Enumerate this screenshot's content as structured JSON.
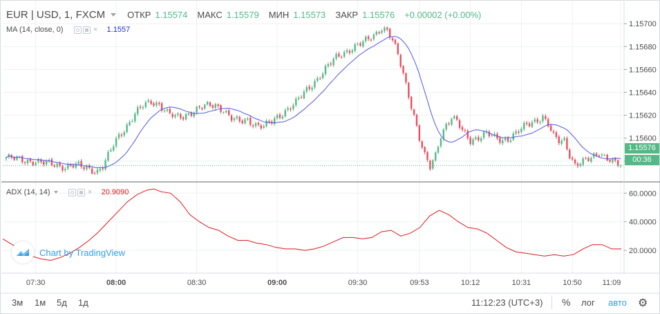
{
  "header": {
    "symbol": "EUR | USD, 1, FXCM",
    "open_label": "ОТКР",
    "open_value": "1.15574",
    "high_label": "МАКС",
    "high_value": "1.15579",
    "low_label": "МИН",
    "low_value": "1.15573",
    "close_label": "ЗАКР",
    "close_value": "1.15576",
    "change": "+0.00002 (+0.00%)"
  },
  "ma_indicator": {
    "label": "MA (14, close, 0)",
    "value": "1.1557",
    "color": "#1e2be3"
  },
  "adx_indicator": {
    "label": "ADX (14, 14)",
    "value": "20.9090",
    "color": "#e0161a"
  },
  "watermark": {
    "text": "Chart by TradingView"
  },
  "price_labels": {
    "last_price": "1.15576",
    "countdown": "00:36"
  },
  "bottom_bar": {
    "ranges": [
      "3м",
      "1м",
      "5д",
      "1д"
    ],
    "clock": "11:12:23 (UTC+3)",
    "percent_label": "%",
    "log_label": "лог",
    "auto_label": "авто"
  },
  "colors": {
    "up": "#53b987",
    "down": "#eb4d5c",
    "ma": "#4f56e8",
    "adx": "#e0161a",
    "accent": "#2f9ff0"
  },
  "chart_data": [
    {
      "type": "candlestick",
      "title": "EUR | USD, 1, FXCM",
      "x_time_range": [
        "07:19",
        "11:12"
      ],
      "x_ticks": [
        {
          "label": "07:30",
          "bold": false
        },
        {
          "label": "08:00",
          "bold": true
        },
        {
          "label": "08:30",
          "bold": false
        },
        {
          "label": "09:00",
          "bold": true
        },
        {
          "label": "09:30",
          "bold": false
        },
        {
          "label": "09:53",
          "bold": false
        },
        {
          "label": "10:12",
          "bold": false
        },
        {
          "label": "10:31",
          "bold": false
        },
        {
          "label": "10:50",
          "bold": false
        },
        {
          "label": "11:09",
          "bold": false
        }
      ],
      "y_ticks": [
        "1.15700",
        "1.15680",
        "1.15660",
        "1.15640",
        "1.15620",
        "1.15600",
        "1.15580"
      ],
      "ylim": [
        1.15575,
        1.15708
      ],
      "close_path": [
        [
          0,
          1.15583
        ],
        [
          5,
          1.15581
        ],
        [
          10,
          1.1558
        ],
        [
          14,
          1.15578
        ],
        [
          18,
          1.15577
        ],
        [
          22,
          1.15575
        ],
        [
          26,
          1.15576
        ],
        [
          30,
          1.15574
        ],
        [
          34,
          1.15571
        ],
        [
          36,
          1.15575
        ],
        [
          38,
          1.15584
        ],
        [
          40,
          1.15594
        ],
        [
          42,
          1.15602
        ],
        [
          45,
          1.15611
        ],
        [
          48,
          1.15621
        ],
        [
          51,
          1.15628
        ],
        [
          54,
          1.15632
        ],
        [
          57,
          1.1563
        ],
        [
          60,
          1.15622
        ],
        [
          63,
          1.15618
        ],
        [
          66,
          1.15619
        ],
        [
          69,
          1.15623
        ],
        [
          72,
          1.15626
        ],
        [
          75,
          1.15628
        ],
        [
          78,
          1.15629
        ],
        [
          81,
          1.15625
        ],
        [
          84,
          1.15617
        ],
        [
          87,
          1.15614
        ],
        [
          90,
          1.15616
        ],
        [
          93,
          1.15612
        ],
        [
          96,
          1.1561
        ],
        [
          99,
          1.15614
        ],
        [
          102,
          1.1562
        ],
        [
          105,
          1.15626
        ],
        [
          108,
          1.15631
        ],
        [
          111,
          1.15639
        ],
        [
          114,
          1.15647
        ],
        [
          117,
          1.15655
        ],
        [
          120,
          1.15663
        ],
        [
          123,
          1.1567
        ],
        [
          126,
          1.15675
        ],
        [
          129,
          1.15679
        ],
        [
          132,
          1.15682
        ],
        [
          135,
          1.15686
        ],
        [
          138,
          1.15692
        ],
        [
          140,
          1.15697
        ],
        [
          142,
          1.15694
        ],
        [
          144,
          1.15685
        ],
        [
          146,
          1.15672
        ],
        [
          148,
          1.15656
        ],
        [
          150,
          1.15638
        ],
        [
          152,
          1.1562
        ],
        [
          154,
          1.156
        ],
        [
          156,
          1.15584
        ],
        [
          158,
          1.15574
        ],
        [
          160,
          1.15585
        ],
        [
          162,
          1.15603
        ],
        [
          164,
          1.15612
        ],
        [
          166,
          1.15618
        ],
        [
          168,
          1.15614
        ],
        [
          170,
          1.15606
        ],
        [
          173,
          1.15598
        ],
        [
          176,
          1.15601
        ],
        [
          179,
          1.15604
        ],
        [
          182,
          1.156
        ],
        [
          185,
          1.15598
        ],
        [
          188,
          1.15601
        ],
        [
          191,
          1.15606
        ],
        [
          194,
          1.15611
        ],
        [
          197,
          1.15615
        ],
        [
          200,
          1.15619
        ],
        [
          202,
          1.15612
        ],
        [
          204,
          1.15601
        ],
        [
          206,
          1.15597
        ],
        [
          208,
          1.15598
        ],
        [
          210,
          1.15586
        ],
        [
          212,
          1.15577
        ],
        [
          215,
          1.15579
        ],
        [
          218,
          1.15582
        ],
        [
          221,
          1.15588
        ],
        [
          224,
          1.15583
        ],
        [
          227,
          1.15578
        ],
        [
          229,
          1.15576
        ]
      ],
      "ma_period": 14
    },
    {
      "type": "line",
      "title": "ADX (14, 14)",
      "y_ticks": [
        "60.0000",
        "40.0000",
        "20.0000"
      ],
      "ylim": [
        5,
        64
      ],
      "series": [
        {
          "name": "ADX (14, 14)",
          "points": [
            [
              0,
              28
            ],
            [
              4,
              24
            ],
            [
              8,
              20
            ],
            [
              12,
              16
            ],
            [
              16,
              14
            ],
            [
              20,
              13
            ],
            [
              24,
              15
            ],
            [
              28,
              18
            ],
            [
              32,
              22
            ],
            [
              36,
              27
            ],
            [
              40,
              33
            ],
            [
              44,
              40
            ],
            [
              48,
              47
            ],
            [
              52,
              54
            ],
            [
              56,
              59
            ],
            [
              60,
              62
            ],
            [
              63,
              63
            ],
            [
              66,
              61
            ],
            [
              70,
              60
            ],
            [
              74,
              54
            ],
            [
              78,
              45
            ],
            [
              82,
              40
            ],
            [
              86,
              36
            ],
            [
              90,
              34
            ],
            [
              94,
              30
            ],
            [
              98,
              27
            ],
            [
              102,
              27
            ],
            [
              106,
              25
            ],
            [
              110,
              24
            ],
            [
              114,
              22
            ],
            [
              118,
              21
            ],
            [
              122,
              21
            ],
            [
              126,
              20
            ],
            [
              130,
              21
            ],
            [
              134,
              23
            ],
            [
              138,
              26
            ],
            [
              142,
              29
            ],
            [
              146,
              29
            ],
            [
              150,
              28
            ],
            [
              154,
              29
            ],
            [
              158,
              33
            ],
            [
              162,
              34
            ],
            [
              166,
              30
            ],
            [
              170,
              32
            ],
            [
              174,
              36
            ],
            [
              178,
              44
            ],
            [
              182,
              48
            ],
            [
              186,
              45
            ],
            [
              190,
              40
            ],
            [
              194,
              36
            ],
            [
              198,
              35
            ],
            [
              202,
              32
            ],
            [
              206,
              27
            ],
            [
              210,
              22
            ],
            [
              214,
              19
            ],
            [
              218,
              18
            ],
            [
              222,
              17
            ],
            [
              226,
              16
            ],
            [
              230,
              17
            ],
            [
              234,
              16
            ],
            [
              238,
              17
            ],
            [
              242,
              21
            ],
            [
              246,
              24
            ],
            [
              250,
              24
            ],
            [
              254,
              21
            ],
            [
              258,
              21
            ]
          ]
        }
      ]
    }
  ]
}
